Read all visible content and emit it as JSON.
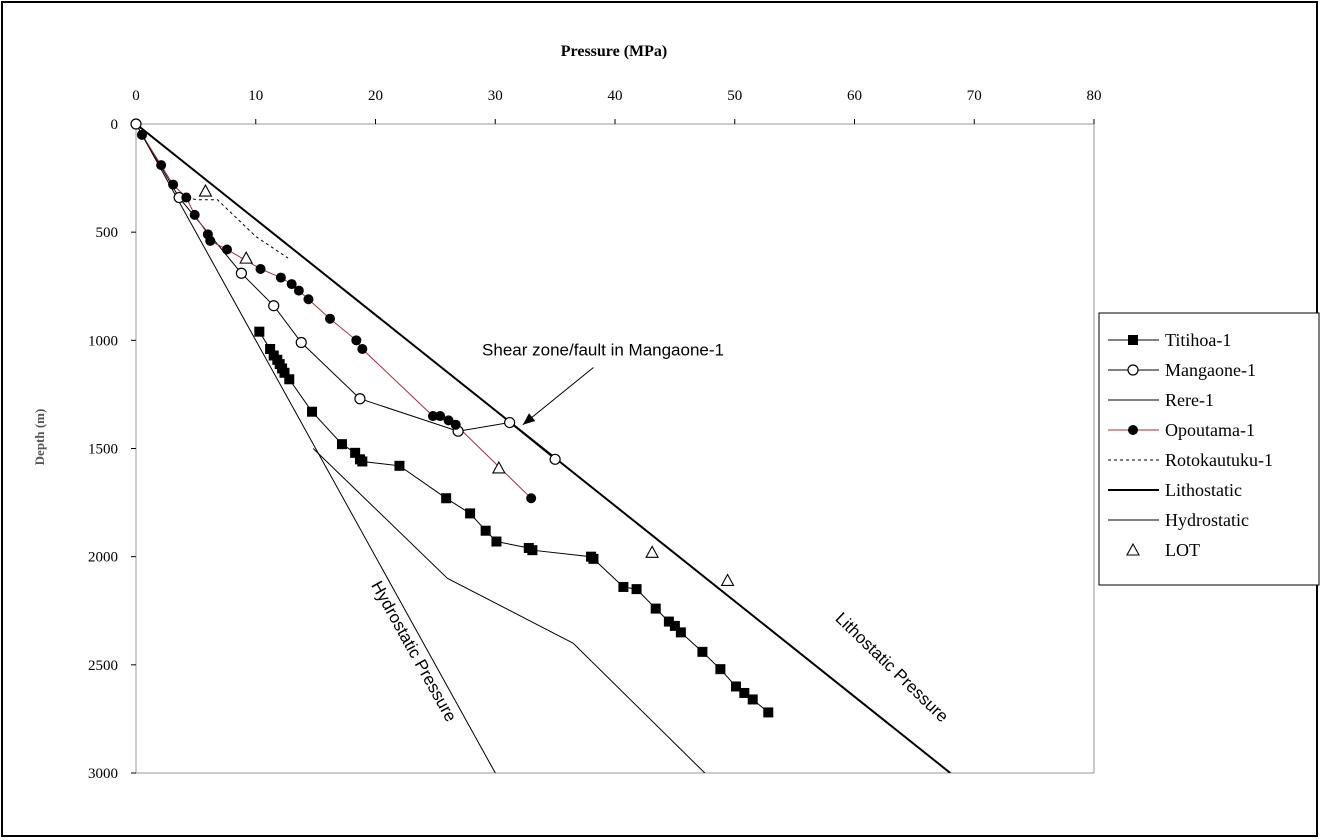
{
  "chart_data": {
    "type": "line",
    "title": "Pressure (MPa)",
    "xlabel": "Pressure (MPa)",
    "ylabel": "Depth (m)",
    "xlim": [
      0,
      80
    ],
    "ylim": [
      0,
      3000
    ],
    "y_inverted": true,
    "x_axis_position": "top",
    "x_ticks": [
      "0",
      "10",
      "20",
      "30",
      "40",
      "50",
      "60",
      "70",
      "80"
    ],
    "y_ticks": [
      "0",
      "500",
      "1000",
      "1500",
      "2000",
      "2500",
      "3000"
    ],
    "grid": false,
    "legend_position": "right",
    "series": [
      {
        "name": "Titihoa-1",
        "marker": "filled-square",
        "color": "#000000",
        "points": [
          [
            10.3,
            960
          ],
          [
            11.2,
            1040
          ],
          [
            11.5,
            1070
          ],
          [
            11.8,
            1090
          ],
          [
            12.0,
            1110
          ],
          [
            12.2,
            1130
          ],
          [
            12.4,
            1150
          ],
          [
            12.8,
            1180
          ],
          [
            14.7,
            1330
          ],
          [
            17.2,
            1480
          ],
          [
            18.3,
            1520
          ],
          [
            18.7,
            1550
          ],
          [
            18.9,
            1560
          ],
          [
            22.0,
            1580
          ],
          [
            25.9,
            1730
          ],
          [
            27.9,
            1800
          ],
          [
            29.2,
            1880
          ],
          [
            30.1,
            1930
          ],
          [
            32.8,
            1960
          ],
          [
            33.1,
            1970
          ],
          [
            38.0,
            2000
          ],
          [
            38.2,
            2010
          ],
          [
            40.7,
            2140
          ],
          [
            41.8,
            2150
          ],
          [
            43.4,
            2240
          ],
          [
            44.5,
            2300
          ],
          [
            45.0,
            2320
          ],
          [
            45.5,
            2350
          ],
          [
            47.3,
            2440
          ],
          [
            48.8,
            2520
          ],
          [
            50.1,
            2600
          ],
          [
            50.8,
            2630
          ],
          [
            51.5,
            2660
          ],
          [
            52.8,
            2720
          ]
        ]
      },
      {
        "name": "Mangaone-1",
        "marker": "open-circle",
        "color": "#000000",
        "points": [
          [
            0,
            0
          ],
          [
            3.6,
            340
          ],
          [
            8.8,
            690
          ],
          [
            11.5,
            840
          ],
          [
            13.8,
            1010
          ],
          [
            18.7,
            1270
          ],
          [
            26.9,
            1420
          ],
          [
            31.2,
            1380
          ],
          [
            35.0,
            1550
          ]
        ]
      },
      {
        "name": "Rere-1",
        "marker": "none",
        "color": "#000000",
        "points": [
          [
            14.8,
            1500
          ],
          [
            26.0,
            2100
          ],
          [
            36.5,
            2400
          ],
          [
            47.5,
            3000
          ]
        ]
      },
      {
        "name": "Opoutama-1",
        "marker": "filled-circle",
        "color": "#a0303a",
        "points": [
          [
            0.5,
            50
          ],
          [
            2.1,
            190
          ],
          [
            3.1,
            280
          ],
          [
            4.2,
            340
          ],
          [
            4.9,
            420
          ],
          [
            6.0,
            510
          ],
          [
            6.2,
            540
          ],
          [
            7.6,
            580
          ],
          [
            10.4,
            670
          ],
          [
            12.1,
            710
          ],
          [
            13.0,
            740
          ],
          [
            13.6,
            770
          ],
          [
            14.4,
            810
          ],
          [
            16.2,
            900
          ],
          [
            18.4,
            1000
          ],
          [
            18.9,
            1040
          ],
          [
            24.8,
            1350
          ],
          [
            25.4,
            1350
          ],
          [
            26.1,
            1370
          ],
          [
            26.7,
            1390
          ],
          [
            33.0,
            1730
          ]
        ]
      },
      {
        "name": "Rotokautuku-1",
        "marker": "none",
        "color": "#000000",
        "dash": "dotted",
        "points": [
          [
            3.8,
            330
          ],
          [
            5.0,
            350
          ],
          [
            6.8,
            350
          ],
          [
            10.0,
            520
          ],
          [
            12.7,
            620
          ]
        ]
      },
      {
        "name": "Lithostatic",
        "marker": "none",
        "color": "#000000",
        "width": 2,
        "points": [
          [
            0,
            0
          ],
          [
            68,
            3000
          ]
        ]
      },
      {
        "name": "Hydrostatic",
        "marker": "none",
        "color": "#000000",
        "points": [
          [
            0,
            0
          ],
          [
            30,
            3000
          ]
        ]
      },
      {
        "name": "LOT",
        "marker": "open-triangle",
        "color": "#000000",
        "points": [
          [
            5.8,
            310
          ],
          [
            9.2,
            620
          ],
          [
            30.3,
            1590
          ],
          [
            43.1,
            1980
          ],
          [
            49.4,
            2110
          ]
        ]
      }
    ],
    "annotations": [
      {
        "text": "Shear zone/fault in Mangaone-1",
        "x": 39,
        "y": 1070,
        "arrow_to": [
          32.3,
          1390
        ]
      },
      {
        "text": "Hydrostatic Pressure",
        "x": 22.8,
        "y": 2450,
        "rotation_deg": 61
      },
      {
        "text": "Lithostatic Pressure",
        "x": 62.8,
        "y": 2530,
        "rotation_deg": 44
      }
    ]
  }
}
